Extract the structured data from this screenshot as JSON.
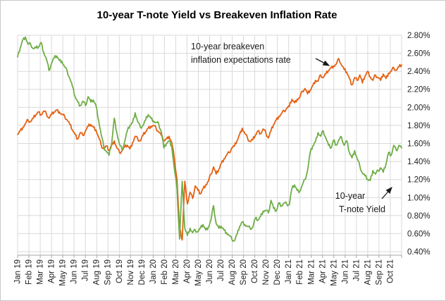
{
  "chart_data": {
    "type": "line",
    "title": "10-year T-note Yield vs Breakeven Inflation Rate",
    "xlabel": "",
    "ylabel": "",
    "y_axis": {
      "min": 0.4,
      "max": 2.8,
      "step": 0.2,
      "unit": "%",
      "side": "right",
      "tick_labels": [
        "0.40%",
        "0.60%",
        "0.80%",
        "1.00%",
        "1.20%",
        "1.40%",
        "1.60%",
        "1.80%",
        "2.00%",
        "2.20%",
        "2.40%",
        "2.60%",
        "2.80%"
      ]
    },
    "x_axis": {
      "tick_labels": [
        "Jan 19",
        "Feb 19",
        "Mar 19",
        "Apr 19",
        "May 19",
        "Jun 19",
        "Jul 19",
        "Aug 19",
        "Sep 19",
        "Oct 19",
        "Nov 19",
        "Dec 19",
        "Jan 20",
        "Feb 20",
        "Mar 20",
        "Apr 20",
        "May 20",
        "Jun 20",
        "Jul 20",
        "Aug 20",
        "Sep 20",
        "Oct 20",
        "Nov 20",
        "Dec 20",
        "Jan 21",
        "Feb 21",
        "Mar 21",
        "Apr 21",
        "May 21",
        "Jun 21",
        "Jul 21",
        "Aug 21",
        "Sep 21",
        "Oct 21"
      ],
      "label_rotation_deg": -90
    },
    "grid": true,
    "legend": "none",
    "style": {
      "grid_color": "#D9D9D9",
      "axis_color": "#A6A6A6",
      "border_color": "#C8C8C8",
      "text_color": "#1F1F1F",
      "background": "#FFFFFF"
    },
    "series": [
      {
        "name": "10-year breakeven inflation expectations rate",
        "color": "#E46112",
        "cadence": "weekly",
        "values": [
          1.7,
          1.74,
          1.78,
          1.82,
          1.86,
          1.84,
          1.88,
          1.92,
          1.95,
          1.92,
          1.96,
          1.93,
          1.88,
          1.92,
          1.95,
          1.97,
          1.95,
          1.92,
          1.9,
          1.86,
          1.81,
          1.75,
          1.7,
          1.65,
          1.72,
          1.69,
          1.74,
          1.79,
          1.81,
          1.78,
          1.75,
          1.67,
          1.58,
          1.54,
          1.57,
          1.52,
          1.58,
          1.63,
          1.55,
          1.5,
          1.52,
          1.56,
          1.58,
          1.54,
          1.61,
          1.68,
          1.65,
          1.63,
          1.69,
          1.73,
          1.77,
          1.79,
          1.8,
          1.77,
          1.73,
          1.69,
          1.63,
          1.65,
          1.68,
          1.61,
          1.44,
          1.2,
          0.66,
          0.53,
          1.18,
          0.93,
          1.06,
          0.99,
          1.13,
          1.08,
          1.04,
          1.1,
          1.14,
          1.18,
          1.26,
          1.34,
          1.26,
          1.31,
          1.38,
          1.43,
          1.47,
          1.5,
          1.55,
          1.57,
          1.63,
          1.7,
          1.77,
          1.71,
          1.66,
          1.62,
          1.64,
          1.69,
          1.74,
          1.71,
          1.76,
          1.72,
          1.66,
          1.74,
          1.81,
          1.86,
          1.9,
          1.93,
          1.96,
          1.99,
          2.01,
          2.09,
          2.05,
          2.09,
          2.11,
          2.18,
          2.21,
          2.15,
          2.19,
          2.24,
          2.3,
          2.29,
          2.36,
          2.33,
          2.37,
          2.41,
          2.44,
          2.46,
          2.48,
          2.54,
          2.47,
          2.42,
          2.39,
          2.32,
          2.25,
          2.33,
          2.3,
          2.36,
          2.27,
          2.35,
          2.4,
          2.34,
          2.3,
          2.36,
          2.33,
          2.3,
          2.37,
          2.32,
          2.38,
          2.4,
          2.44,
          2.41,
          2.45,
          2.47
        ]
      },
      {
        "name": "10-year T-note Yield",
        "color": "#6FAE47",
        "cadence": "weekly",
        "values": [
          2.56,
          2.66,
          2.75,
          2.78,
          2.7,
          2.7,
          2.65,
          2.66,
          2.67,
          2.72,
          2.61,
          2.54,
          2.41,
          2.49,
          2.55,
          2.57,
          2.52,
          2.51,
          2.45,
          2.4,
          2.32,
          2.23,
          2.12,
          2.06,
          2.02,
          2.07,
          2.02,
          2.12,
          2.06,
          2.08,
          2.02,
          1.86,
          1.7,
          1.56,
          1.51,
          1.47,
          1.6,
          1.88,
          1.72,
          1.59,
          1.53,
          1.62,
          1.74,
          1.8,
          1.83,
          1.94,
          1.84,
          1.78,
          1.8,
          1.86,
          1.92,
          1.88,
          1.85,
          1.83,
          1.82,
          1.73,
          1.55,
          1.6,
          1.63,
          1.57,
          1.32,
          1.1,
          0.54,
          1.18,
          0.66,
          0.58,
          0.66,
          0.61,
          0.64,
          0.62,
          0.66,
          0.7,
          0.64,
          0.67,
          0.75,
          0.91,
          0.71,
          0.66,
          0.68,
          0.64,
          0.61,
          0.58,
          0.54,
          0.52,
          0.59,
          0.68,
          0.73,
          0.7,
          0.68,
          0.66,
          0.67,
          0.77,
          0.75,
          0.79,
          0.85,
          0.86,
          0.83,
          0.97,
          0.88,
          0.85,
          0.94,
          0.91,
          0.94,
          0.93,
          0.92,
          1.1,
          1.14,
          1.08,
          1.07,
          1.14,
          1.2,
          1.3,
          1.5,
          1.57,
          1.62,
          1.72,
          1.68,
          1.74,
          1.66,
          1.58,
          1.55,
          1.64,
          1.58,
          1.64,
          1.67,
          1.58,
          1.63,
          1.5,
          1.44,
          1.52,
          1.43,
          1.35,
          1.27,
          1.24,
          1.2,
          1.19,
          1.3,
          1.26,
          1.3,
          1.33,
          1.28,
          1.37,
          1.5,
          1.47,
          1.58,
          1.52,
          1.58,
          1.55
        ]
      }
    ],
    "annotations": [
      {
        "lines": [
          "10-year breakeven",
          "inflation expectations rate"
        ],
        "points_to": "10-year breakeven inflation expectations rate"
      },
      {
        "lines": [
          "10-year",
          "T-note Yield"
        ],
        "points_to": "10-year T-note Yield"
      }
    ]
  }
}
